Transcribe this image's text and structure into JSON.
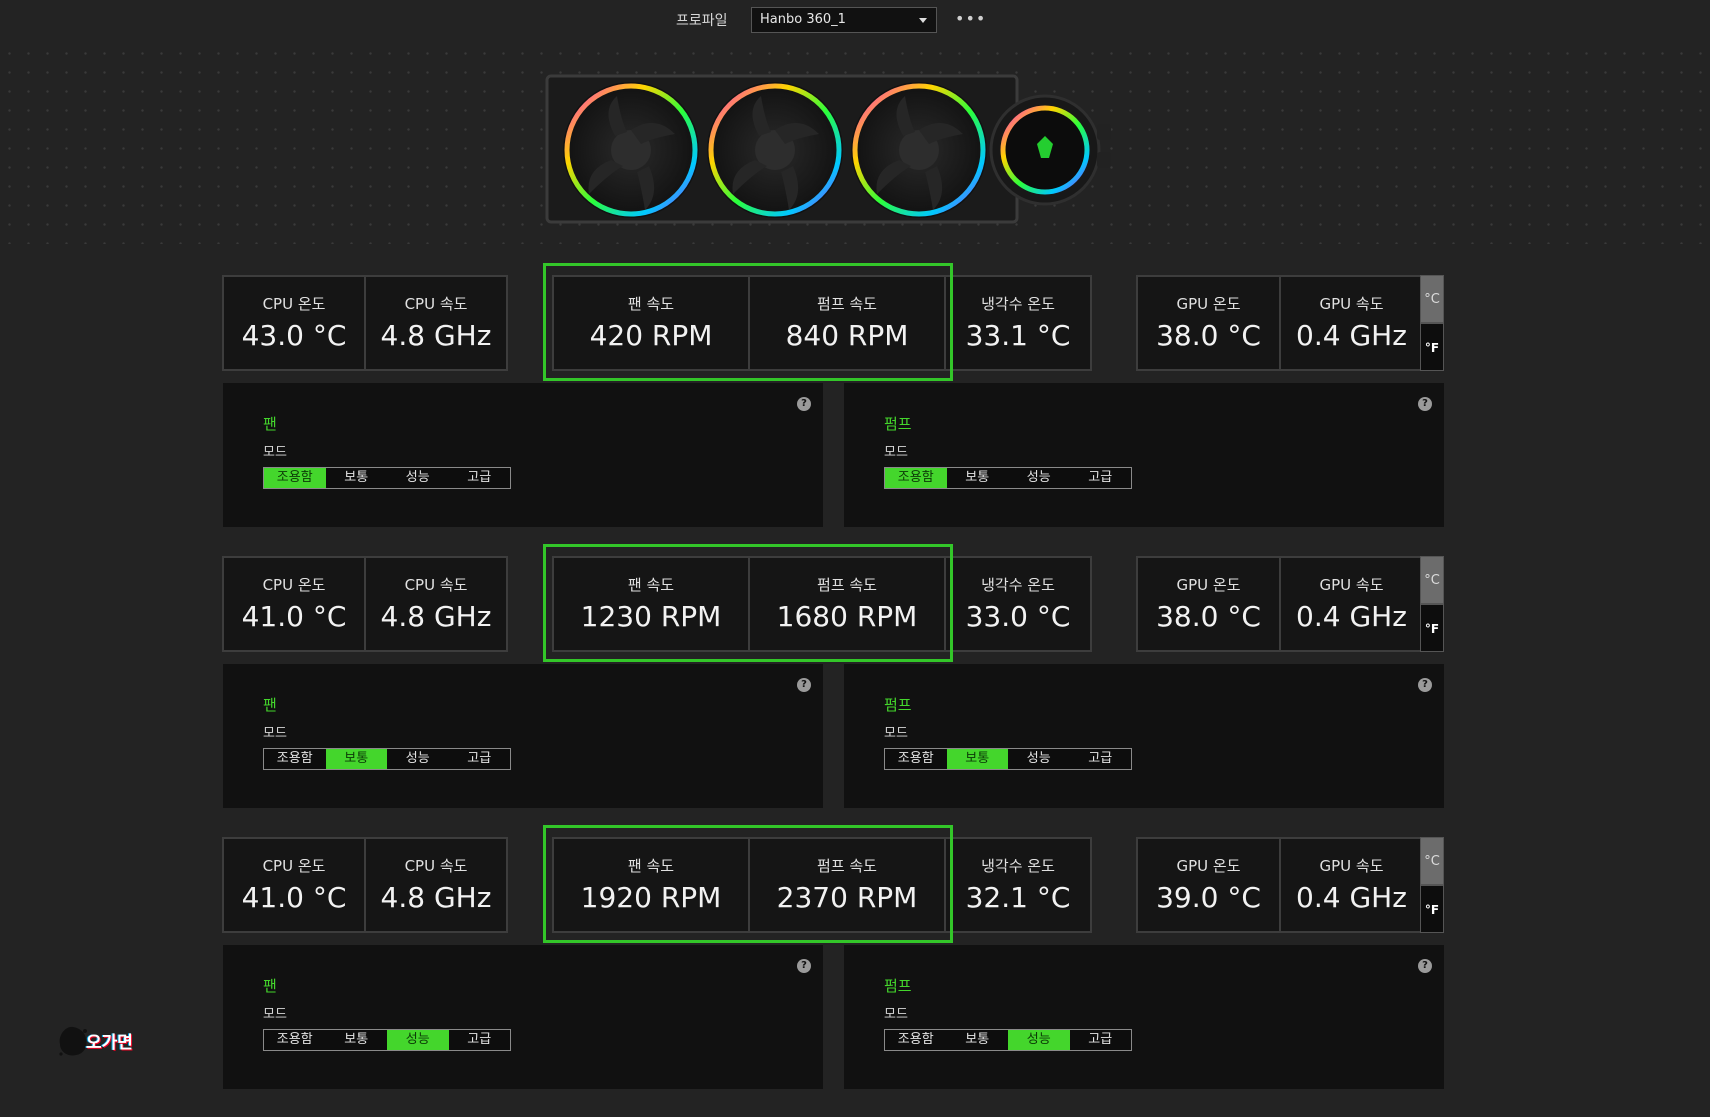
{
  "header": {
    "profile_label": "프로파일",
    "profile_value": "Hanbo 360_1",
    "more_label": "•••"
  },
  "colors": {
    "accent": "#44d62c",
    "outline": "#33c629",
    "background": "#232323",
    "panel": "#111111"
  },
  "device": {
    "name_icon": "razer-hanbo-360-aio-cooler"
  },
  "rows": [
    {
      "cpu": {
        "temp_label": "CPU 온도",
        "temp_value": "43.0 °C",
        "speed_label": "CPU 속도",
        "speed_value": "4.8 GHz"
      },
      "fan_speed": {
        "label": "팬 속도",
        "value": "420 RPM"
      },
      "pump_speed": {
        "label": "펌프 속도",
        "value": "840 RPM"
      },
      "water_temp": {
        "label": "냉각수 온도",
        "value": "33.1 °C"
      },
      "gpu": {
        "temp_label": "GPU 온도",
        "temp_value": "38.0 °C",
        "speed_label": "GPU 속도",
        "speed_value": "0.4 GHz"
      },
      "units": {
        "c": "°C",
        "f": "°F"
      },
      "fan_panel": {
        "title": "팬",
        "mode_label": "모드",
        "options": [
          "조용함",
          "보통",
          "성능",
          "고급"
        ],
        "active": 0
      },
      "pump_panel": {
        "title": "펌프",
        "mode_label": "모드",
        "options": [
          "조용함",
          "보통",
          "성능",
          "고급"
        ],
        "active": 0
      },
      "help": "?"
    },
    {
      "cpu": {
        "temp_label": "CPU 온도",
        "temp_value": "41.0 °C",
        "speed_label": "CPU 속도",
        "speed_value": "4.8 GHz"
      },
      "fan_speed": {
        "label": "팬 속도",
        "value": "1230 RPM"
      },
      "pump_speed": {
        "label": "펌프 속도",
        "value": "1680 RPM"
      },
      "water_temp": {
        "label": "냉각수 온도",
        "value": "33.0 °C"
      },
      "gpu": {
        "temp_label": "GPU 온도",
        "temp_value": "38.0 °C",
        "speed_label": "GPU 속도",
        "speed_value": "0.4 GHz"
      },
      "units": {
        "c": "°C",
        "f": "°F"
      },
      "fan_panel": {
        "title": "팬",
        "mode_label": "모드",
        "options": [
          "조용함",
          "보통",
          "성능",
          "고급"
        ],
        "active": 1
      },
      "pump_panel": {
        "title": "펌프",
        "mode_label": "모드",
        "options": [
          "조용함",
          "보통",
          "성능",
          "고급"
        ],
        "active": 1
      },
      "help": "?"
    },
    {
      "cpu": {
        "temp_label": "CPU 온도",
        "temp_value": "41.0 °C",
        "speed_label": "CPU 속도",
        "speed_value": "4.8 GHz"
      },
      "fan_speed": {
        "label": "팬 속도",
        "value": "1920 RPM"
      },
      "pump_speed": {
        "label": "펌프 속도",
        "value": "2370 RPM"
      },
      "water_temp": {
        "label": "냉각수 온도",
        "value": "32.1 °C"
      },
      "gpu": {
        "temp_label": "GPU 온도",
        "temp_value": "39.0 °C",
        "speed_label": "GPU 속도",
        "speed_value": "0.4 GHz"
      },
      "units": {
        "c": "°C",
        "f": "°F"
      },
      "fan_panel": {
        "title": "팬",
        "mode_label": "모드",
        "options": [
          "조용함",
          "보통",
          "성능",
          "고급"
        ],
        "active": 2
      },
      "pump_panel": {
        "title": "펌프",
        "mode_label": "모드",
        "options": [
          "조용함",
          "보통",
          "성능",
          "고급"
        ],
        "active": 2
      },
      "help": "?"
    }
  ],
  "watermark": {
    "text": "오가면"
  }
}
